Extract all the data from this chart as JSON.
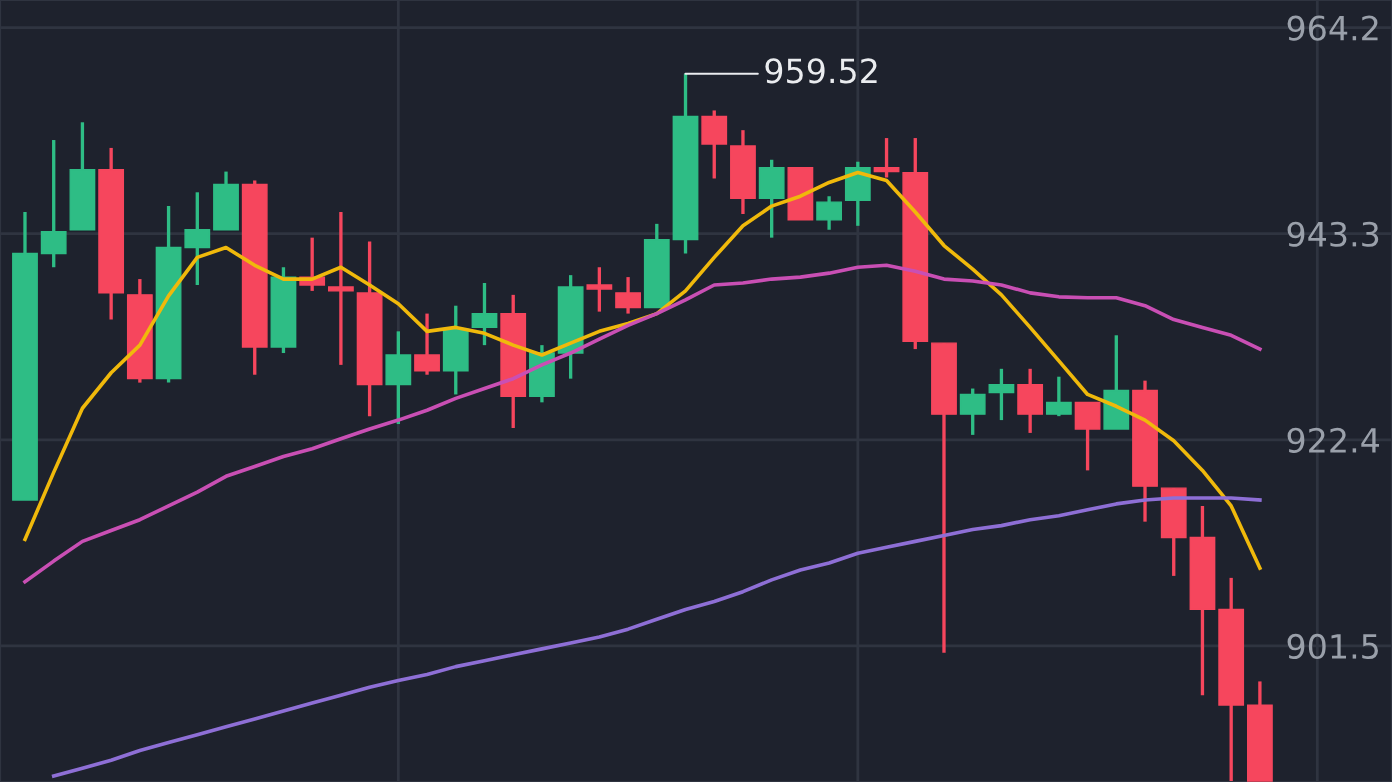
{
  "chart_data": {
    "type": "candlestick",
    "categories": [
      null,
      null,
      null,
      null,
      null,
      null,
      null,
      null,
      null,
      null,
      null,
      null,
      null,
      null,
      null,
      null,
      null,
      null,
      null,
      null,
      null,
      null,
      null,
      null,
      null,
      null,
      null,
      null,
      null,
      null,
      null,
      null,
      null,
      null,
      null,
      null,
      null,
      null,
      null,
      null,
      null,
      null,
      null,
      null
    ],
    "ohlc": [
      [
        916.3,
        945.5,
        916.3,
        941.3
      ],
      [
        941.3,
        952.8,
        939.9,
        943.5
      ],
      [
        943.7,
        954.6,
        943.7,
        949.8
      ],
      [
        949.8,
        952.0,
        934.6,
        937.3
      ],
      [
        937.1,
        938.7,
        928.2,
        928.6
      ],
      [
        928.6,
        946.1,
        928.2,
        941.9
      ],
      [
        941.9,
        947.5,
        938.1,
        943.7
      ],
      [
        943.7,
        949.6,
        943.7,
        948.3
      ],
      [
        948.3,
        948.7,
        929.0,
        931.8
      ],
      [
        931.8,
        939.9,
        931.2,
        938.9
      ],
      [
        938.9,
        942.9,
        937.5,
        938.1
      ],
      [
        937.9,
        945.5,
        930.0,
        937.5
      ],
      [
        937.3,
        942.5,
        924.8,
        928.0
      ],
      [
        928.0,
        933.4,
        924.0,
        931.0
      ],
      [
        931.0,
        935.2,
        929.0,
        929.4
      ],
      [
        929.4,
        936.0,
        927.0,
        933.6
      ],
      [
        933.8,
        938.3,
        932.0,
        935.2
      ],
      [
        935.2,
        937.1,
        923.6,
        926.8
      ],
      [
        926.8,
        932.0,
        926.2,
        931.2
      ],
      [
        931.2,
        939.1,
        928.6,
        937.9
      ],
      [
        938.1,
        939.9,
        935.4,
        937.7
      ],
      [
        937.3,
        938.9,
        935.2,
        935.8
      ],
      [
        935.8,
        944.3,
        935.8,
        942.7
      ],
      [
        942.7,
        959.52,
        941.3,
        955.2
      ],
      [
        955.2,
        955.8,
        948.9,
        952.4
      ],
      [
        952.2,
        953.8,
        945.3,
        946.9
      ],
      [
        946.9,
        950.8,
        942.9,
        950.0
      ],
      [
        950.0,
        950.0,
        944.7,
        944.7
      ],
      [
        944.7,
        947.1,
        943.7,
        946.5
      ],
      [
        946.7,
        950.6,
        944.1,
        950.0
      ],
      [
        950.0,
        953.0,
        949.0,
        949.6
      ],
      [
        949.5,
        953.0,
        931.6,
        932.4
      ],
      [
        932.2,
        932.2,
        900.8,
        925.0
      ],
      [
        925.0,
        927.6,
        922.9,
        927.0
      ],
      [
        927.2,
        929.6,
        924.4,
        928.0
      ],
      [
        928.0,
        929.6,
        923.1,
        925.0
      ],
      [
        925.0,
        928.8,
        924.8,
        926.2
      ],
      [
        926.2,
        926.2,
        919.3,
        923.5
      ],
      [
        923.5,
        933.0,
        923.5,
        927.4
      ],
      [
        927.4,
        928.4,
        914.1,
        917.7
      ],
      [
        917.5,
        917.5,
        908.6,
        912.5
      ],
      [
        912.5,
        915.7,
        896.5,
        905.2
      ],
      [
        905.2,
        908.4,
        887.8,
        895.5
      ],
      [
        895.5,
        897.9,
        887.8,
        887.8
      ]
    ],
    "colors": [
      "#2ebd85",
      "#2ebd85",
      "#2ebd85",
      "#f6465d",
      "#f6465d",
      "#2ebd85",
      "#2ebd85",
      "#2ebd85",
      "#f6465d",
      "#2ebd85",
      "#f6465d",
      "#f6465d",
      "#f6465d",
      "#2ebd85",
      "#f6465d",
      "#2ebd85",
      "#2ebd85",
      "#f6465d",
      "#2ebd85",
      "#2ebd85",
      "#f6465d",
      "#f6465d",
      "#2ebd85",
      "#2ebd85",
      "#f6465d",
      "#f6465d",
      "#2ebd85",
      "#f6465d",
      "#2ebd85",
      "#2ebd85",
      "#f6465d",
      "#f6465d",
      "#f6465d",
      "#2ebd85",
      "#2ebd85",
      "#f6465d",
      "#2ebd85",
      "#f6465d",
      "#2ebd85",
      "#f6465d",
      "#f6465d",
      "#f6465d",
      "#f6465d",
      "#f6465d"
    ],
    "series": [
      {
        "type": "line",
        "color": "#f0b90b",
        "values": [
          912.3,
          919.1,
          925.6,
          929.2,
          932.0,
          937.0,
          940.9,
          941.9,
          940.1,
          938.7,
          938.7,
          939.9,
          938.1,
          936.2,
          933.4,
          933.8,
          933.2,
          932.0,
          931.0,
          932.2,
          933.4,
          934.2,
          935.2,
          937.5,
          940.9,
          944.1,
          946.1,
          947.1,
          948.5,
          949.5,
          948.7,
          945.5,
          942.1,
          939.7,
          937.1,
          933.8,
          930.4,
          927.0,
          925.8,
          924.4,
          922.3,
          919.3,
          915.7,
          909.4
        ]
      },
      {
        "type": "line",
        "color": "#c94fb4",
        "values": [
          908.0,
          910.1,
          912.1,
          913.2,
          914.3,
          915.7,
          917.1,
          918.7,
          919.7,
          920.7,
          921.5,
          922.5,
          923.5,
          924.4,
          925.4,
          926.6,
          927.6,
          928.6,
          930.0,
          931.2,
          932.6,
          934.0,
          935.2,
          936.6,
          938.1,
          938.3,
          938.7,
          938.9,
          939.3,
          939.9,
          940.1,
          939.5,
          938.7,
          938.5,
          938.1,
          937.3,
          936.9,
          936.8,
          936.8,
          936.0,
          934.6,
          933.8,
          933.0,
          931.6
        ]
      },
      {
        "type": "line",
        "color": "#8e6fd6",
        "values": [
          null,
          888.3,
          889.1,
          889.9,
          890.9,
          891.7,
          892.5,
          893.3,
          894.1,
          894.9,
          895.7,
          896.5,
          897.3,
          898.0,
          898.6,
          899.4,
          900.0,
          900.6,
          901.2,
          901.8,
          902.4,
          903.2,
          904.2,
          905.2,
          906.0,
          907.0,
          908.2,
          909.2,
          909.9,
          910.9,
          911.5,
          912.1,
          912.7,
          913.3,
          913.7,
          914.3,
          914.7,
          915.3,
          915.9,
          916.3,
          916.5,
          916.5,
          916.5,
          916.3
        ]
      }
    ],
    "ylim": [
      887.7,
      967.0
    ],
    "yticks": [
      964.2,
      943.3,
      922.4,
      901.5
    ],
    "grid": true,
    "tick_labels": "y",
    "annotations": [
      "959.52"
    ]
  }
}
